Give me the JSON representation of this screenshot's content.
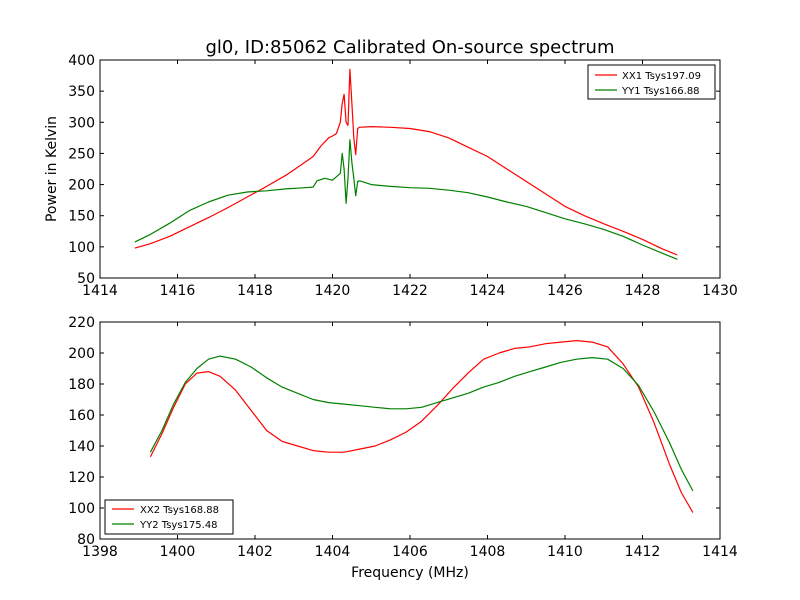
{
  "chart_data": [
    {
      "type": "line",
      "title": "gl0, ID:85062 Calibrated On-source spectrum",
      "xlabel": "",
      "ylabel": "Power in Kelvin",
      "xlim": [
        1414,
        1430
      ],
      "ylim": [
        50,
        400
      ],
      "xticks": [
        "1414",
        "1416",
        "1418",
        "1420",
        "1422",
        "1424",
        "1426",
        "1428",
        "1430"
      ],
      "yticks": [
        "50",
        "100",
        "150",
        "200",
        "250",
        "300",
        "350",
        "400"
      ],
      "legend_position": "top-right",
      "series": [
        {
          "name": "XX1 Tsys197.09",
          "color": "#ff0000",
          "points": [
            [
              1414.9,
              98
            ],
            [
              1415.3,
              105
            ],
            [
              1415.8,
              117
            ],
            [
              1416.3,
              132
            ],
            [
              1416.8,
              147
            ],
            [
              1417.3,
              163
            ],
            [
              1417.8,
              180
            ],
            [
              1418.3,
              197
            ],
            [
              1418.8,
              215
            ],
            [
              1419.2,
              232
            ],
            [
              1419.5,
              245
            ],
            [
              1419.7,
              262
            ],
            [
              1419.9,
              275
            ],
            [
              1420.0,
              278
            ],
            [
              1420.1,
              282
            ],
            [
              1420.2,
              300
            ],
            [
              1420.25,
              330
            ],
            [
              1420.3,
              345
            ],
            [
              1420.35,
              300
            ],
            [
              1420.4,
              295
            ],
            [
              1420.45,
              385
            ],
            [
              1420.5,
              330
            ],
            [
              1420.55,
              275
            ],
            [
              1420.6,
              248
            ],
            [
              1420.65,
              290
            ],
            [
              1420.7,
              292
            ],
            [
              1421.0,
              293
            ],
            [
              1421.5,
              292
            ],
            [
              1422.0,
              290
            ],
            [
              1422.5,
              285
            ],
            [
              1423.0,
              275
            ],
            [
              1423.5,
              260
            ],
            [
              1424.0,
              245
            ],
            [
              1424.5,
              225
            ],
            [
              1425.0,
              205
            ],
            [
              1425.5,
              185
            ],
            [
              1426.0,
              165
            ],
            [
              1426.5,
              150
            ],
            [
              1427.0,
              137
            ],
            [
              1427.5,
              125
            ],
            [
              1428.0,
              112
            ],
            [
              1428.5,
              97
            ],
            [
              1428.9,
              87
            ]
          ]
        },
        {
          "name": "YY1 Tsys166.88",
          "color": "#008000",
          "points": [
            [
              1414.9,
              108
            ],
            [
              1415.3,
              120
            ],
            [
              1415.8,
              138
            ],
            [
              1416.3,
              158
            ],
            [
              1416.8,
              172
            ],
            [
              1417.3,
              183
            ],
            [
              1417.8,
              188
            ],
            [
              1418.3,
              190
            ],
            [
              1418.8,
              193
            ],
            [
              1419.3,
              195
            ],
            [
              1419.5,
              196
            ],
            [
              1419.6,
              206
            ],
            [
              1419.8,
              210
            ],
            [
              1420.0,
              207
            ],
            [
              1420.2,
              218
            ],
            [
              1420.25,
              250
            ],
            [
              1420.3,
              225
            ],
            [
              1420.35,
              170
            ],
            [
              1420.4,
              210
            ],
            [
              1420.45,
              272
            ],
            [
              1420.5,
              235
            ],
            [
              1420.55,
              210
            ],
            [
              1420.6,
              182
            ],
            [
              1420.65,
              205
            ],
            [
              1420.7,
              206
            ],
            [
              1421.0,
              200
            ],
            [
              1421.5,
              197
            ],
            [
              1422.0,
              195
            ],
            [
              1422.5,
              194
            ],
            [
              1423.0,
              191
            ],
            [
              1423.5,
              187
            ],
            [
              1424.0,
              180
            ],
            [
              1424.5,
              172
            ],
            [
              1425.0,
              165
            ],
            [
              1425.5,
              155
            ],
            [
              1426.0,
              145
            ],
            [
              1426.5,
              137
            ],
            [
              1427.0,
              128
            ],
            [
              1427.5,
              117
            ],
            [
              1428.0,
              103
            ],
            [
              1428.5,
              90
            ],
            [
              1428.9,
              80
            ]
          ]
        }
      ]
    },
    {
      "type": "line",
      "title": "",
      "xlabel": "Frequency (MHz)",
      "ylabel": "",
      "xlim": [
        1398,
        1414
      ],
      "ylim": [
        80,
        220
      ],
      "xticks": [
        "1398",
        "1400",
        "1402",
        "1404",
        "1406",
        "1408",
        "1410",
        "1412",
        "1414"
      ],
      "yticks": [
        "80",
        "100",
        "120",
        "140",
        "160",
        "180",
        "200",
        "220"
      ],
      "legend_position": "lower-left",
      "series": [
        {
          "name": "XX2 Tsys168.88",
          "color": "#ff0000",
          "points": [
            [
              1399.3,
              133
            ],
            [
              1399.6,
              148
            ],
            [
              1399.9,
              165
            ],
            [
              1400.2,
              180
            ],
            [
              1400.5,
              187
            ],
            [
              1400.8,
              188
            ],
            [
              1401.1,
              185
            ],
            [
              1401.5,
              176
            ],
            [
              1401.9,
              163
            ],
            [
              1402.3,
              150
            ],
            [
              1402.7,
              143
            ],
            [
              1403.1,
              140
            ],
            [
              1403.5,
              137
            ],
            [
              1403.9,
              136
            ],
            [
              1404.3,
              136
            ],
            [
              1404.7,
              138
            ],
            [
              1405.1,
              140
            ],
            [
              1405.5,
              144
            ],
            [
              1405.9,
              149
            ],
            [
              1406.3,
              156
            ],
            [
              1406.7,
              166
            ],
            [
              1407.1,
              177
            ],
            [
              1407.5,
              187
            ],
            [
              1407.9,
              196
            ],
            [
              1408.3,
              200
            ],
            [
              1408.7,
              203
            ],
            [
              1409.1,
              204
            ],
            [
              1409.5,
              206
            ],
            [
              1409.9,
              207
            ],
            [
              1410.3,
              208
            ],
            [
              1410.7,
              207
            ],
            [
              1411.1,
              204
            ],
            [
              1411.5,
              193
            ],
            [
              1411.9,
              178
            ],
            [
              1412.3,
              155
            ],
            [
              1412.7,
              128
            ],
            [
              1413.0,
              110
            ],
            [
              1413.3,
              97
            ]
          ]
        },
        {
          "name": "YY2 Tsys175.48",
          "color": "#008000",
          "points": [
            [
              1399.3,
              136
            ],
            [
              1399.6,
              150
            ],
            [
              1399.9,
              167
            ],
            [
              1400.2,
              181
            ],
            [
              1400.5,
              190
            ],
            [
              1400.8,
              196
            ],
            [
              1401.1,
              198
            ],
            [
              1401.5,
              196
            ],
            [
              1401.9,
              191
            ],
            [
              1402.3,
              184
            ],
            [
              1402.7,
              178
            ],
            [
              1403.1,
              174
            ],
            [
              1403.5,
              170
            ],
            [
              1403.9,
              168
            ],
            [
              1404.3,
              167
            ],
            [
              1404.7,
              166
            ],
            [
              1405.1,
              165
            ],
            [
              1405.5,
              164
            ],
            [
              1405.9,
              164
            ],
            [
              1406.3,
              165
            ],
            [
              1406.7,
              168
            ],
            [
              1407.1,
              171
            ],
            [
              1407.5,
              174
            ],
            [
              1407.9,
              178
            ],
            [
              1408.3,
              181
            ],
            [
              1408.7,
              185
            ],
            [
              1409.1,
              188
            ],
            [
              1409.5,
              191
            ],
            [
              1409.9,
              194
            ],
            [
              1410.3,
              196
            ],
            [
              1410.7,
              197
            ],
            [
              1411.1,
              196
            ],
            [
              1411.5,
              190
            ],
            [
              1411.9,
              179
            ],
            [
              1412.3,
              162
            ],
            [
              1412.7,
              142
            ],
            [
              1413.0,
              125
            ],
            [
              1413.3,
              111
            ]
          ]
        }
      ]
    }
  ]
}
